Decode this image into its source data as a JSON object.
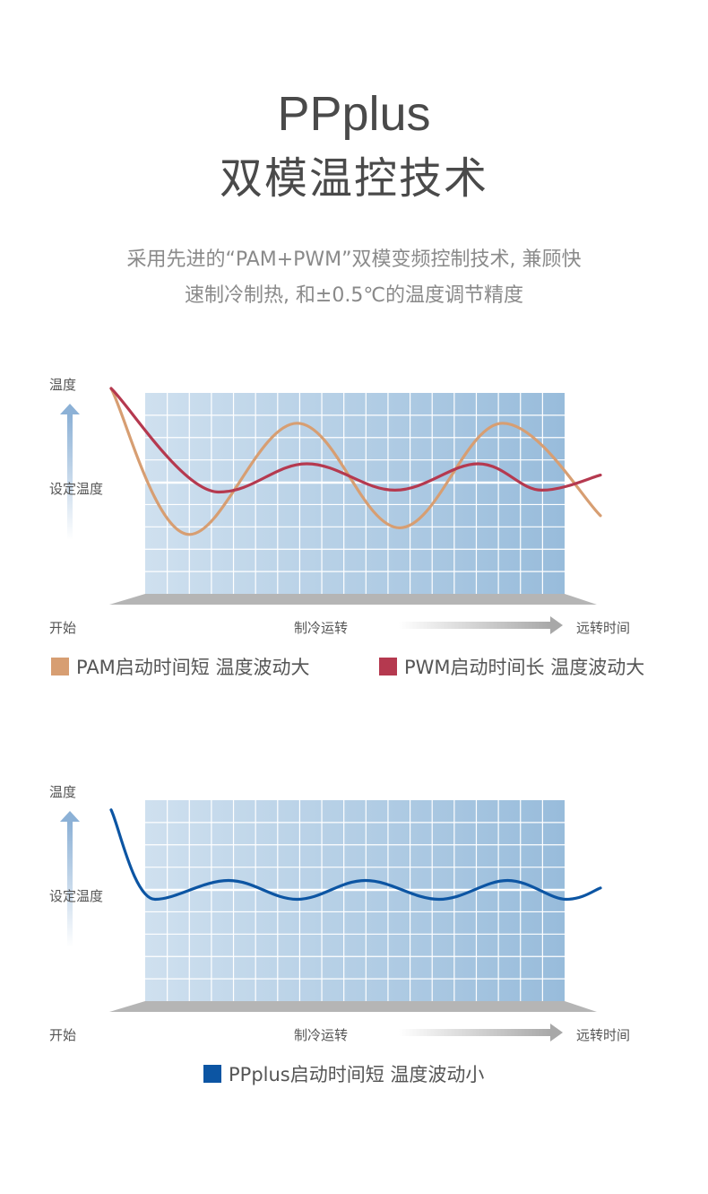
{
  "header": {
    "title_en": "PPplus",
    "title_cn": "双模温控技术",
    "description_line1": "采用先进的“PAM+PWM”双模变频控制技术, 兼顾快",
    "description_line2": "速制冷制热, 和±0.5℃的温度调节精度"
  },
  "colors": {
    "pam": "#d79e72",
    "pwm": "#b5394f",
    "ppplus": "#0c55a3",
    "grid_light": "#cfe0ef",
    "grid_dark": "#98bcdb",
    "platform": "#b5b5b5",
    "arrow": "#8cb1d6"
  },
  "chart_data": [
    {
      "type": "line",
      "ylabel": "温度",
      "y_reference_label": "设定温度",
      "x_axis_labels": {
        "start": "开始",
        "middle": "制冷运转",
        "end": "远转时间"
      },
      "series": [
        {
          "name": "PAM启动时间短 温度波动大",
          "color": "#d79e72",
          "description": "large amplitude oscillation around set temperature",
          "x": [
            0,
            0.16,
            0.38,
            0.59,
            0.8,
            1.0
          ],
          "y": [
            1.0,
            -0.55,
            0.63,
            -0.48,
            0.63,
            -0.35
          ]
        },
        {
          "name": "PWM启动时间长 温度波动大",
          "color": "#b5394f",
          "description": "slow start, medium oscillation",
          "x": [
            0,
            0.22,
            0.4,
            0.58,
            0.75,
            0.88,
            1.0
          ],
          "y": [
            1.0,
            -0.1,
            0.2,
            -0.08,
            0.2,
            -0.08,
            0.08
          ]
        }
      ],
      "legend": [
        {
          "label": "PAM启动时间短 温度波动大",
          "color": "#d79e72"
        },
        {
          "label": "PWM启动时间长 温度波动大",
          "color": "#b5394f"
        }
      ]
    },
    {
      "type": "line",
      "ylabel": "温度",
      "y_reference_label": "设定温度",
      "x_axis_labels": {
        "start": "开始",
        "middle": "制冷运转",
        "end": "远转时间"
      },
      "series": [
        {
          "name": "PPplus启动时间短 温度波动小",
          "color": "#0c55a3",
          "description": "fast start, small oscillation",
          "x": [
            0,
            0.09,
            0.24,
            0.38,
            0.52,
            0.67,
            0.81,
            0.93,
            1.0
          ],
          "y": [
            0.85,
            -0.1,
            0.1,
            -0.1,
            0.1,
            -0.1,
            0.1,
            -0.1,
            0.02
          ]
        }
      ],
      "legend": [
        {
          "label": "PPplus启动时间短 温度波动小",
          "color": "#0c55a3"
        }
      ]
    }
  ]
}
